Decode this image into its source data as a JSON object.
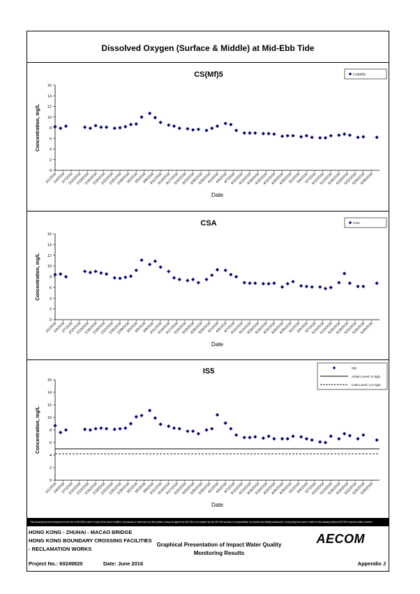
{
  "page": {
    "title": "Dissolved Oxygen (Surface & Middle) at Mid-Ebb Tide",
    "disclaimer": "This Drawing has been prepared for the use of AECOM's client. It may not be used, modified, reproduced or relied upon by third parties, except as agreed by AECOM or as required by law. AECOM accepts no responsibility, and denies any liability whatsoever, to any party that uses or relies on this drawing without AECOM's express written consent.",
    "project_line1": "HONG KONG - ZHUHAI - MACAO BRIDGE",
    "project_line2": "HONG KONG BOUNDARY CROSSING FACILITIES",
    "project_line3": "- RECLAMATION WORKS",
    "center_line1": "Graphical Presentation of Impact Water Quality",
    "center_line2": "Monitoring Results",
    "logo": "AECOM",
    "project_no": "Project No.: 60249820",
    "date": "Date: June 2016",
    "appendix": "Appendix J"
  },
  "chart_data": [
    {
      "type": "scatter",
      "title": "CS(Mf)5",
      "xlabel": "Date",
      "ylabel": "Concentration, mg/L",
      "ylim": [
        0,
        16
      ],
      "yticks": [
        0,
        2,
        4,
        6,
        8,
        10,
        12,
        14,
        16
      ],
      "xlim": [
        "2/1/2016",
        "5/31/2016"
      ],
      "xticks": [
        "2/1/2016",
        "2/4/2016",
        "2/7/2016",
        "2/10/2016",
        "2/13/2016",
        "2/16/2016",
        "2/19/2016",
        "2/22/2016",
        "2/25/2016",
        "2/28/2016",
        "3/2/2016",
        "3/5/2016",
        "3/8/2016",
        "3/11/2016",
        "3/14/2016",
        "3/17/2016",
        "3/20/2016",
        "3/23/2016",
        "3/26/2016",
        "3/29/2016",
        "4/1/2016",
        "4/4/2016",
        "4/7/2016",
        "4/10/2016",
        "4/13/2016",
        "4/16/2016",
        "4/19/2016",
        "4/22/2016",
        "4/25/2016",
        "4/28/2016",
        "5/1/2016",
        "5/4/2016",
        "5/7/2016",
        "5/10/2016",
        "5/13/2016",
        "5/16/2016",
        "5/19/2016",
        "5/22/2016",
        "5/25/2016",
        "5/28/2016"
      ],
      "legend": [
        {
          "name": "CS(Mf)5",
          "marker": "diamond"
        }
      ],
      "legend_position": "top-right",
      "color": "#000080",
      "points": [
        {
          "x": "2/1/2016",
          "y": 8.2
        },
        {
          "x": "2/3/2016",
          "y": 7.9
        },
        {
          "x": "2/5/2016",
          "y": 8.3
        },
        {
          "x": "2/12/2016",
          "y": 8.1
        },
        {
          "x": "2/14/2016",
          "y": 7.9
        },
        {
          "x": "2/16/2016",
          "y": 8.4
        },
        {
          "x": "2/18/2016",
          "y": 8.1
        },
        {
          "x": "2/20/2016",
          "y": 8.1
        },
        {
          "x": "2/23/2016",
          "y": 7.9
        },
        {
          "x": "2/25/2016",
          "y": 8.0
        },
        {
          "x": "2/27/2016",
          "y": 8.2
        },
        {
          "x": "2/29/2016",
          "y": 8.6
        },
        {
          "x": "3/2/2016",
          "y": 8.7
        },
        {
          "x": "3/4/2016",
          "y": 10.0
        },
        {
          "x": "3/7/2016",
          "y": 10.7
        },
        {
          "x": "3/9/2016",
          "y": 9.9
        },
        {
          "x": "3/11/2016",
          "y": 9.0
        },
        {
          "x": "3/14/2016",
          "y": 8.5
        },
        {
          "x": "3/16/2016",
          "y": 8.3
        },
        {
          "x": "3/18/2016",
          "y": 7.9
        },
        {
          "x": "3/21/2016",
          "y": 7.8
        },
        {
          "x": "3/23/2016",
          "y": 7.6
        },
        {
          "x": "3/25/2016",
          "y": 7.7
        },
        {
          "x": "3/28/2016",
          "y": 7.5
        },
        {
          "x": "3/30/2016",
          "y": 7.9
        },
        {
          "x": "4/1/2016",
          "y": 8.3
        },
        {
          "x": "4/4/2016",
          "y": 8.8
        },
        {
          "x": "4/6/2016",
          "y": 8.6
        },
        {
          "x": "4/8/2016",
          "y": 7.5
        },
        {
          "x": "4/11/2016",
          "y": 7.0
        },
        {
          "x": "4/13/2016",
          "y": 7.0
        },
        {
          "x": "4/15/2016",
          "y": 7.0
        },
        {
          "x": "4/18/2016",
          "y": 6.9
        },
        {
          "x": "4/20/2016",
          "y": 6.9
        },
        {
          "x": "4/22/2016",
          "y": 6.8
        },
        {
          "x": "4/25/2016",
          "y": 6.4
        },
        {
          "x": "4/27/2016",
          "y": 6.5
        },
        {
          "x": "4/29/2016",
          "y": 6.5
        },
        {
          "x": "5/2/2016",
          "y": 6.3
        },
        {
          "x": "5/4/2016",
          "y": 6.5
        },
        {
          "x": "5/6/2016",
          "y": 6.2
        },
        {
          "x": "5/9/2016",
          "y": 6.1
        },
        {
          "x": "5/11/2016",
          "y": 6.1
        },
        {
          "x": "5/13/2016",
          "y": 6.5
        },
        {
          "x": "5/16/2016",
          "y": 6.6
        },
        {
          "x": "5/18/2016",
          "y": 6.8
        },
        {
          "x": "5/20/2016",
          "y": 6.6
        },
        {
          "x": "5/23/2016",
          "y": 6.2
        },
        {
          "x": "5/25/2016",
          "y": 6.3
        },
        {
          "x": "5/30/2016",
          "y": 6.2
        }
      ]
    },
    {
      "type": "scatter",
      "title": "CSA",
      "xlabel": "Date",
      "ylabel": "Concentration, mg/L",
      "ylim": [
        0,
        16
      ],
      "yticks": [
        0,
        2,
        4,
        6,
        8,
        10,
        12,
        14,
        16
      ],
      "xlim": [
        "2/1/2016",
        "5/31/2016"
      ],
      "xticks": [
        "2/1/2016",
        "2/4/2016",
        "2/7/2016",
        "2/10/2016",
        "2/13/2016",
        "2/16/2016",
        "2/19/2016",
        "2/22/2016",
        "2/25/2016",
        "2/28/2016",
        "3/2/2016",
        "3/5/2016",
        "3/8/2016",
        "3/11/2016",
        "3/14/2016",
        "3/17/2016",
        "3/20/2016",
        "3/23/2016",
        "3/26/2016",
        "3/29/2016",
        "4/1/2016",
        "4/4/2016",
        "4/7/2016",
        "4/10/2016",
        "4/13/2016",
        "4/16/2016",
        "4/19/2016",
        "4/22/2016",
        "4/25/2016",
        "4/28/2016",
        "5/1/2016",
        "5/4/2016",
        "5/7/2016",
        "5/10/2016",
        "5/13/2016",
        "5/16/2016",
        "5/19/2016",
        "5/22/2016",
        "5/25/2016",
        "5/28/2016"
      ],
      "legend": [
        {
          "name": "CSA",
          "marker": "diamond"
        }
      ],
      "legend_position": "top-right",
      "color": "#000080",
      "points": [
        {
          "x": "2/1/2016",
          "y": 8.4
        },
        {
          "x": "2/3/2016",
          "y": 8.5
        },
        {
          "x": "2/5/2016",
          "y": 8.0
        },
        {
          "x": "2/12/2016",
          "y": 9.0
        },
        {
          "x": "2/14/2016",
          "y": 8.8
        },
        {
          "x": "2/16/2016",
          "y": 9.0
        },
        {
          "x": "2/18/2016",
          "y": 8.7
        },
        {
          "x": "2/20/2016",
          "y": 8.5
        },
        {
          "x": "2/23/2016",
          "y": 7.8
        },
        {
          "x": "2/25/2016",
          "y": 7.7
        },
        {
          "x": "2/27/2016",
          "y": 7.9
        },
        {
          "x": "2/29/2016",
          "y": 8.1
        },
        {
          "x": "3/2/2016",
          "y": 9.2
        },
        {
          "x": "3/4/2016",
          "y": 11.1
        },
        {
          "x": "3/7/2016",
          "y": 10.3
        },
        {
          "x": "3/9/2016",
          "y": 10.9
        },
        {
          "x": "3/11/2016",
          "y": 9.8
        },
        {
          "x": "3/14/2016",
          "y": 9.0
        },
        {
          "x": "3/16/2016",
          "y": 7.8
        },
        {
          "x": "3/18/2016",
          "y": 7.5
        },
        {
          "x": "3/21/2016",
          "y": 7.3
        },
        {
          "x": "3/23/2016",
          "y": 7.5
        },
        {
          "x": "3/25/2016",
          "y": 6.9
        },
        {
          "x": "3/28/2016",
          "y": 7.5
        },
        {
          "x": "3/30/2016",
          "y": 8.3
        },
        {
          "x": "4/1/2016",
          "y": 9.3
        },
        {
          "x": "4/4/2016",
          "y": 9.2
        },
        {
          "x": "4/6/2016",
          "y": 8.4
        },
        {
          "x": "4/8/2016",
          "y": 8.0
        },
        {
          "x": "4/11/2016",
          "y": 6.9
        },
        {
          "x": "4/13/2016",
          "y": 6.8
        },
        {
          "x": "4/15/2016",
          "y": 6.8
        },
        {
          "x": "4/18/2016",
          "y": 6.7
        },
        {
          "x": "4/20/2016",
          "y": 6.7
        },
        {
          "x": "4/22/2016",
          "y": 6.8
        },
        {
          "x": "4/25/2016",
          "y": 6.1
        },
        {
          "x": "4/27/2016",
          "y": 6.7
        },
        {
          "x": "4/29/2016",
          "y": 7.1
        },
        {
          "x": "5/2/2016",
          "y": 6.3
        },
        {
          "x": "5/4/2016",
          "y": 6.2
        },
        {
          "x": "5/6/2016",
          "y": 6.1
        },
        {
          "x": "5/9/2016",
          "y": 6.1
        },
        {
          "x": "5/11/2016",
          "y": 5.8
        },
        {
          "x": "5/13/2016",
          "y": 6.0
        },
        {
          "x": "5/16/2016",
          "y": 6.9
        },
        {
          "x": "5/18/2016",
          "y": 8.6
        },
        {
          "x": "5/20/2016",
          "y": 6.8
        },
        {
          "x": "5/23/2016",
          "y": 6.2
        },
        {
          "x": "5/25/2016",
          "y": 6.2
        },
        {
          "x": "5/30/2016",
          "y": 6.8
        }
      ]
    },
    {
      "type": "scatter",
      "title": "IS5",
      "xlabel": "Date",
      "ylabel": "Concentration, mg/L",
      "ylim": [
        0,
        16
      ],
      "yticks": [
        0,
        2,
        4,
        6,
        8,
        10,
        12,
        14,
        16
      ],
      "xlim": [
        "2/1/2016",
        "5/31/2016"
      ],
      "xticks": [
        "2/1/2016",
        "2/4/2016",
        "2/7/2016",
        "2/10/2016",
        "2/13/2016",
        "2/16/2016",
        "2/19/2016",
        "2/22/2016",
        "2/25/2016",
        "2/28/2016",
        "3/2/2016",
        "3/5/2016",
        "3/8/2016",
        "3/11/2016",
        "3/14/2016",
        "3/17/2016",
        "3/20/2016",
        "3/23/2016",
        "3/26/2016",
        "3/29/2016",
        "4/1/2016",
        "4/4/2016",
        "4/7/2016",
        "4/10/2016",
        "4/13/2016",
        "4/16/2016",
        "4/19/2016",
        "4/22/2016",
        "4/25/2016",
        "4/28/2016",
        "5/1/2016",
        "5/4/2016",
        "5/7/2016",
        "5/10/2016",
        "5/13/2016",
        "5/16/2016",
        "5/19/2016",
        "5/22/2016",
        "5/25/2016",
        "5/28/2016"
      ],
      "legend": [
        {
          "name": "IS5",
          "marker": "diamond"
        },
        {
          "name": "Action Level: 5 mg/L",
          "line": "solid"
        },
        {
          "name": "Limit Level: 4.2 mg/L",
          "line": "dashed"
        }
      ],
      "legend_position": "top-right",
      "color": "#000080",
      "reference_lines": [
        {
          "name": "Action Level: 5 mg/L",
          "y": 5.0,
          "style": "solid"
        },
        {
          "name": "Limit Level: 4.2 mg/L",
          "y": 4.2,
          "style": "dashed"
        }
      ],
      "points": [
        {
          "x": "2/1/2016",
          "y": 8.7
        },
        {
          "x": "2/3/2016",
          "y": 7.6
        },
        {
          "x": "2/5/2016",
          "y": 8.0
        },
        {
          "x": "2/12/2016",
          "y": 8.1
        },
        {
          "x": "2/14/2016",
          "y": 8.0
        },
        {
          "x": "2/16/2016",
          "y": 8.2
        },
        {
          "x": "2/18/2016",
          "y": 8.3
        },
        {
          "x": "2/20/2016",
          "y": 8.2
        },
        {
          "x": "2/23/2016",
          "y": 8.1
        },
        {
          "x": "2/25/2016",
          "y": 8.2
        },
        {
          "x": "2/27/2016",
          "y": 8.3
        },
        {
          "x": "2/29/2016",
          "y": 9.0
        },
        {
          "x": "3/2/2016",
          "y": 10.1
        },
        {
          "x": "3/4/2016",
          "y": 10.3
        },
        {
          "x": "3/7/2016",
          "y": 11.1
        },
        {
          "x": "3/9/2016",
          "y": 9.9
        },
        {
          "x": "3/11/2016",
          "y": 8.9
        },
        {
          "x": "3/14/2016",
          "y": 8.6
        },
        {
          "x": "3/16/2016",
          "y": 8.3
        },
        {
          "x": "3/18/2016",
          "y": 8.2
        },
        {
          "x": "3/21/2016",
          "y": 7.8
        },
        {
          "x": "3/23/2016",
          "y": 7.8
        },
        {
          "x": "3/25/2016",
          "y": 7.4
        },
        {
          "x": "3/28/2016",
          "y": 8.0
        },
        {
          "x": "3/30/2016",
          "y": 8.2
        },
        {
          "x": "4/1/2016",
          "y": 10.4
        },
        {
          "x": "4/4/2016",
          "y": 9.1
        },
        {
          "x": "4/6/2016",
          "y": 8.2
        },
        {
          "x": "4/8/2016",
          "y": 7.2
        },
        {
          "x": "4/11/2016",
          "y": 6.8
        },
        {
          "x": "4/13/2016",
          "y": 6.8
        },
        {
          "x": "4/15/2016",
          "y": 6.9
        },
        {
          "x": "4/18/2016",
          "y": 6.7
        },
        {
          "x": "4/20/2016",
          "y": 7.0
        },
        {
          "x": "4/22/2016",
          "y": 6.6
        },
        {
          "x": "4/25/2016",
          "y": 6.6
        },
        {
          "x": "4/27/2016",
          "y": 6.6
        },
        {
          "x": "4/29/2016",
          "y": 7.0
        },
        {
          "x": "5/2/2016",
          "y": 6.9
        },
        {
          "x": "5/4/2016",
          "y": 6.6
        },
        {
          "x": "5/6/2016",
          "y": 6.4
        },
        {
          "x": "5/9/2016",
          "y": 6.1
        },
        {
          "x": "5/11/2016",
          "y": 6.0
        },
        {
          "x": "5/13/2016",
          "y": 7.0
        },
        {
          "x": "5/16/2016",
          "y": 6.6
        },
        {
          "x": "5/18/2016",
          "y": 7.4
        },
        {
          "x": "5/20/2016",
          "y": 7.1
        },
        {
          "x": "5/23/2016",
          "y": 6.6
        },
        {
          "x": "5/25/2016",
          "y": 7.2
        },
        {
          "x": "5/30/2016",
          "y": 6.4
        }
      ]
    }
  ]
}
